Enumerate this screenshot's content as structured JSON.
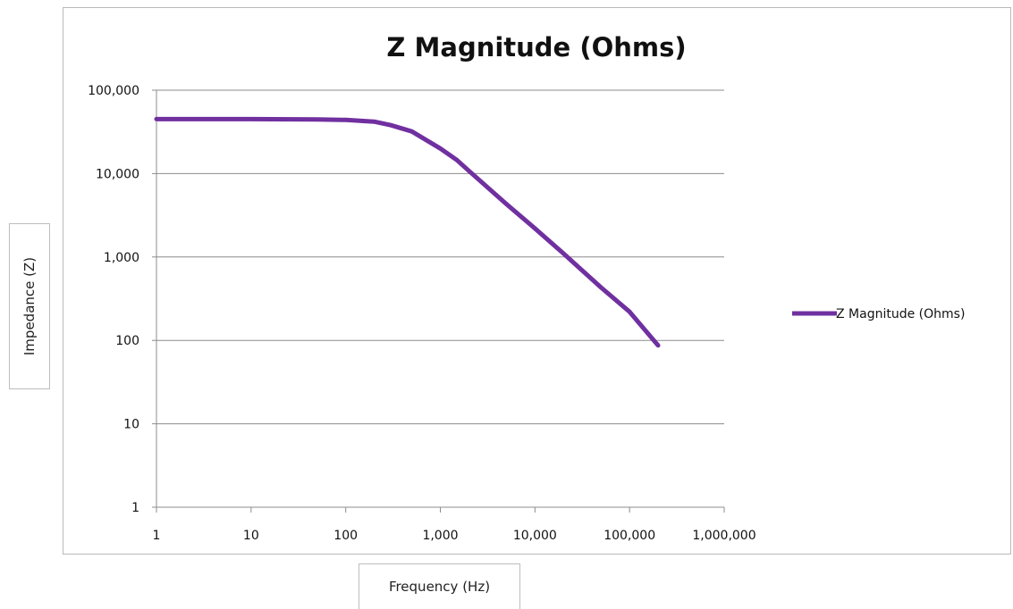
{
  "chart_data": {
    "type": "line",
    "title": "Z Magnitude (Ohms)",
    "xlabel": "Frequency (Hz)",
    "ylabel": "Impedance (Z)",
    "x_scale": "log",
    "y_scale": "log",
    "xlim": [
      1,
      1000000
    ],
    "ylim": [
      1,
      100000
    ],
    "x_tick_labels": [
      "1",
      "10",
      "100",
      "1,000",
      "10,000",
      "100,000",
      "1,000,000"
    ],
    "y_tick_labels": [
      "1",
      "10",
      "100",
      "1,000",
      "10,000",
      "100,000"
    ],
    "grid": "horizontal",
    "legend_position": "right",
    "series": [
      {
        "name": "Z Magnitude  (Ohms)",
        "color": "#7030a0",
        "x": [
          1,
          10,
          50,
          100,
          200,
          300,
          500,
          1000,
          1500,
          2000,
          5000,
          10000,
          20000,
          50000,
          100000,
          200000
        ],
        "y": [
          45000,
          45000,
          44500,
          44000,
          42000,
          38000,
          32000,
          20000,
          14500,
          10800,
          4300,
          2200,
          1100,
          430,
          220,
          87
        ]
      }
    ]
  }
}
